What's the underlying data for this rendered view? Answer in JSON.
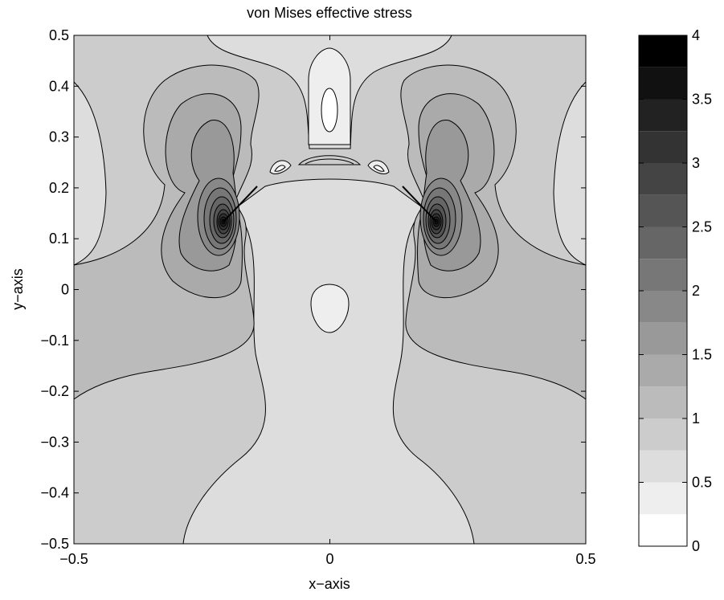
{
  "chart_data": {
    "type": "contour",
    "title": "von Mises effective stress",
    "xlabel": "x−axis",
    "ylabel": "y−axis",
    "xlim": [
      -0.5,
      0.5
    ],
    "ylim": [
      -0.5,
      0.5
    ],
    "x_ticks": [
      {
        "value": -0.5,
        "label": "−0.5"
      },
      {
        "value": 0,
        "label": "0"
      },
      {
        "value": 0.5,
        "label": "0.5"
      }
    ],
    "y_ticks": [
      {
        "value": 0.5,
        "label": "0.5"
      },
      {
        "value": 0.4,
        "label": "0.4"
      },
      {
        "value": 0.3,
        "label": "0.3"
      },
      {
        "value": 0.2,
        "label": "0.2"
      },
      {
        "value": 0.1,
        "label": "0.1"
      },
      {
        "value": 0,
        "label": "0"
      },
      {
        "value": -0.1,
        "label": "−0.1"
      },
      {
        "value": -0.2,
        "label": "−0.2"
      },
      {
        "value": -0.3,
        "label": "−0.3"
      },
      {
        "value": -0.4,
        "label": "−0.4"
      },
      {
        "value": -0.5,
        "label": "−0.5"
      }
    ],
    "colorbar": {
      "range": [
        0,
        4
      ],
      "levels": [
        0,
        0.25,
        0.5,
        0.75,
        1,
        1.25,
        1.5,
        1.75,
        2,
        2.25,
        2.5,
        2.75,
        3,
        3.25,
        3.5,
        3.75,
        4
      ],
      "colors": [
        "#ffffff",
        "#eeeeee",
        "#dddddd",
        "#cccccc",
        "#bbbbbb",
        "#aaaaaa",
        "#999999",
        "#888888",
        "#777777",
        "#666666",
        "#555555",
        "#444444",
        "#333333",
        "#222222",
        "#111111",
        "#000000"
      ],
      "ticks": [
        {
          "value": 0,
          "label": "0"
        },
        {
          "value": 0.5,
          "label": "0.5"
        },
        {
          "value": 1,
          "label": "1"
        },
        {
          "value": 1.5,
          "label": "1.5"
        },
        {
          "value": 2,
          "label": "2"
        },
        {
          "value": 2.5,
          "label": "2.5"
        },
        {
          "value": 3,
          "label": "3"
        },
        {
          "value": 3.5,
          "label": "3.5"
        },
        {
          "value": 4,
          "label": "4"
        }
      ]
    },
    "features": {
      "stress_peaks": [
        {
          "x": -0.21,
          "y": 0.12,
          "level": 4
        },
        {
          "x": 0.21,
          "y": 0.12,
          "level": 4
        }
      ],
      "background_level": 1.0,
      "central_column_level": 0.75,
      "low_regions": [
        {
          "x": 0,
          "y": 0.43,
          "level": 0.5
        },
        {
          "x": 0,
          "y": 0.37,
          "level": 0.25
        },
        {
          "x": 0,
          "y": -0.05,
          "level": 0.5
        },
        {
          "x": -0.47,
          "y": 0.18,
          "level": 0.75
        },
        {
          "x": 0.47,
          "y": 0.18,
          "level": 0.75
        }
      ]
    }
  }
}
